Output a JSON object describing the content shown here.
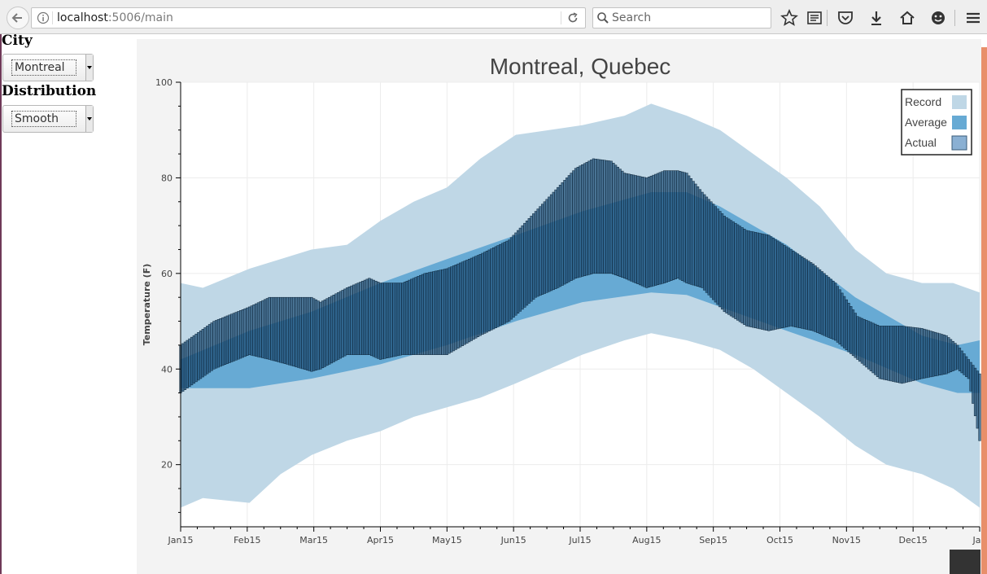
{
  "browser": {
    "url_host": "localhost",
    "url_rest": ":5006/main",
    "search_placeholder": "Search",
    "icons": [
      "back-arrow-icon",
      "info-icon",
      "reload-icon",
      "search-icon",
      "star-icon",
      "reading-list-icon",
      "pocket-icon",
      "download-icon",
      "home-icon",
      "smiley-icon",
      "hamburger-menu-icon"
    ]
  },
  "sidebar": {
    "city_label": "City",
    "city_value": "Montreal",
    "distribution_label": "Distribution",
    "distribution_value": "Smooth"
  },
  "chart_data": {
    "type": "area",
    "title": "Montreal, Quebec",
    "ylabel": "Temperature (F)",
    "xlabel": "",
    "ylim": [
      7,
      100
    ],
    "yticks": [
      20,
      40,
      60,
      80,
      100
    ],
    "xticks": [
      "Jan15",
      "Feb15",
      "Mar15",
      "Apr15",
      "May15",
      "Jun15",
      "Jul15",
      "Aug15",
      "Sep15",
      "Oct15",
      "Nov15",
      "Dec15",
      "Jan"
    ],
    "x_day_span": [
      0,
      360
    ],
    "legend": {
      "placement": "top-right",
      "entries": [
        "Record",
        "Average",
        "Actual"
      ]
    },
    "grid": true,
    "colors": {
      "record": "#bfd7e6",
      "average": "#67aad4",
      "actual": "#1c4c74",
      "actual_stroke": "#0d2438"
    },
    "series": [
      {
        "name": "Record",
        "x": [
          0,
          10,
          31,
          45,
          59,
          75,
          90,
          105,
          120,
          135,
          151,
          166,
          181,
          200,
          212,
          228,
          243,
          258,
          273,
          288,
          304,
          318,
          334,
          348,
          360
        ],
        "high": [
          58,
          57,
          61,
          63,
          65,
          66,
          71,
          75,
          78,
          84,
          89,
          90,
          91,
          93,
          95.5,
          93,
          90,
          85,
          80,
          74,
          65,
          60,
          58,
          58,
          56
        ],
        "low": [
          11,
          13,
          12,
          18,
          22,
          25,
          27,
          30,
          32,
          34,
          37,
          40,
          43,
          46,
          47.5,
          46,
          44,
          40,
          35,
          30,
          24,
          20,
          18,
          15,
          11
        ]
      },
      {
        "name": "Average",
        "x": [
          0,
          31,
          59,
          90,
          120,
          151,
          181,
          212,
          228,
          243,
          273,
          304,
          334,
          350,
          360
        ],
        "high": [
          42,
          48,
          52,
          58,
          63,
          68,
          73,
          77,
          77,
          74,
          66,
          55,
          47,
          45,
          46
        ],
        "low": [
          36,
          36,
          38,
          41,
          45,
          50,
          54,
          56,
          55.5,
          53,
          48,
          43,
          37,
          35,
          35
        ]
      },
      {
        "name": "Actual",
        "x": [
          0,
          15,
          31,
          40,
          48,
          59,
          63,
          75,
          85,
          90,
          100,
          110,
          120,
          135,
          148,
          160,
          170,
          178,
          186,
          194,
          200,
          210,
          218,
          224,
          228,
          235,
          245,
          255,
          265,
          275,
          285,
          295,
          305,
          315,
          325,
          334,
          345,
          350,
          355,
          360
        ],
        "high": [
          45,
          50,
          53,
          55,
          55,
          55,
          54,
          57,
          59,
          58,
          58,
          60,
          61,
          64,
          67,
          73,
          78,
          82,
          84,
          83.5,
          81,
          80,
          81.5,
          81.5,
          81,
          77,
          72,
          69,
          68,
          65,
          62,
          58,
          51,
          49,
          49,
          48.5,
          47,
          45,
          42,
          39
        ],
        "low": [
          35,
          40,
          43,
          42,
          41,
          39.5,
          40,
          43,
          43,
          42,
          43,
          43,
          43,
          47,
          50,
          55,
          57,
          59,
          60,
          60,
          59,
          57,
          58,
          59,
          58,
          57,
          52,
          49,
          48,
          49,
          48,
          46,
          42,
          38,
          37,
          38,
          39,
          40,
          38,
          25
        ]
      }
    ]
  }
}
